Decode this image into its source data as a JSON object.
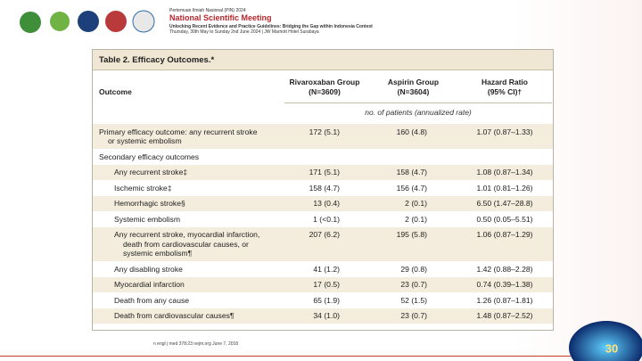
{
  "header": {
    "event": "Pertemuan Ilmiah Nasional (PIN) 2024",
    "title": "National Scientific Meeting",
    "subtitle": "Unlocking Recent Evidence and Practice Guidelines: Bridging the Gap within Indonesia Context",
    "dates": "Thursday, 30th May to Sunday 2nd June 2024 | JW Marriott Hotel Surabaya"
  },
  "table": {
    "title": "Table 2. Efficacy Outcomes.*",
    "columns": [
      [
        "Outcome"
      ],
      [
        "Rivaroxaban Group",
        "(N=3609)"
      ],
      [
        "Aspirin Group",
        "(N=3604)"
      ],
      [
        "Hazard Ratio",
        "(95% CI)†"
      ]
    ],
    "unit_note": "no. of patients (annualized rate)",
    "rows": [
      {
        "label": [
          "Primary efficacy outcome: any recurrent stroke",
          "or systemic embolism"
        ],
        "cells": [
          "172 (5.1)",
          "160 (4.8)",
          "1.07 (0.87–1.33)"
        ]
      },
      {
        "label": [
          "Secondary efficacy outcomes"
        ],
        "rows": [
          {
            "label": [
              "Any recurrent stroke‡"
            ],
            "cells": [
              "171 (5.1)",
              "158 (4.7)",
              "1.08 (0.87–1.34)"
            ]
          },
          {
            "label": [
              "Ischemic stroke‡"
            ],
            "cells": [
              "158 (4.7)",
              "156 (4.7)",
              "1.01 (0.81–1.26)"
            ]
          },
          {
            "label": [
              "Hemorrhagic stroke§"
            ],
            "cells": [
              "13 (0.4)",
              "2 (0.1)",
              "6.50 (1.47–28.8)"
            ]
          },
          {
            "label": [
              "Systemic embolism"
            ],
            "cells": [
              "1 (<0.1)",
              "2 (0.1)",
              "0.50 (0.05–5.51)"
            ]
          },
          {
            "label": [
              "Any recurrent stroke, myocardial infarction,",
              "death from cardiovascular causes, or",
              "systemic embolism¶"
            ],
            "cells": [
              "207 (6.2)",
              "195 (5.8)",
              "1.06 (0.87–1.29)"
            ]
          },
          {
            "label": [
              "Any disabling stroke"
            ],
            "cells": [
              "41 (1.2)",
              "29 (0.8)",
              "1.42 (0.88–2.28)"
            ]
          },
          {
            "label": [
              "Myocardial infarction"
            ],
            "cells": [
              "17 (0.5)",
              "23 (0.7)",
              "0.74 (0.39–1.38)"
            ]
          },
          {
            "label": [
              "Death from any cause"
            ],
            "cells": [
              "65 (1.9)",
              "52 (1.5)",
              "1.26 (0.87–1.81)"
            ]
          },
          {
            "label": [
              "Death from cardiovascular causes¶"
            ],
            "cells": [
              "34 (1.0)",
              "23 (0.7)",
              "1.48 (0.87–2.52)"
            ]
          }
        ]
      }
    ]
  },
  "citation": "n engl j med 378;23 nejm.org June 7, 2018",
  "badge": "30"
}
